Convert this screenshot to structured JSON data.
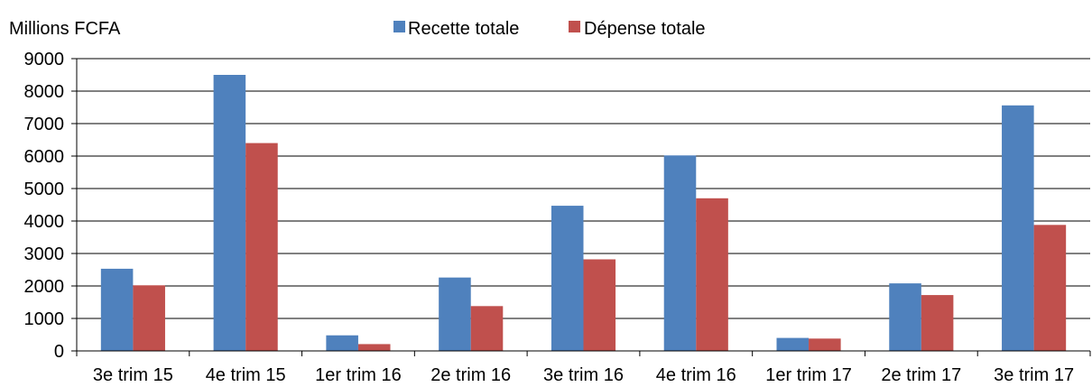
{
  "chart_data": {
    "type": "bar",
    "ylabel": "Millions FCFA",
    "categories": [
      "3e trim 15",
      "4e trim 15",
      "1er trim 16",
      "2e trim 16",
      "3e trim 16",
      "4e trim 16",
      "1er trim 17",
      "2e trim 17",
      "3e trim 17"
    ],
    "series": [
      {
        "name": "Recette totale",
        "color": "#4F81BD",
        "values": [
          2530,
          8500,
          480,
          2260,
          4470,
          6020,
          400,
          2080,
          7560
        ]
      },
      {
        "name": "Dépense totale",
        "color": "#C0504D",
        "values": [
          2020,
          6400,
          210,
          1380,
          2820,
          4700,
          380,
          1720,
          3880
        ]
      }
    ],
    "ylim": [
      0,
      9000
    ],
    "yticks": [
      "0",
      "1000",
      "2000",
      "3000",
      "4000",
      "5000",
      "6000",
      "7000",
      "8000",
      "9000"
    ],
    "grid": true,
    "legend_position": "top-center"
  }
}
